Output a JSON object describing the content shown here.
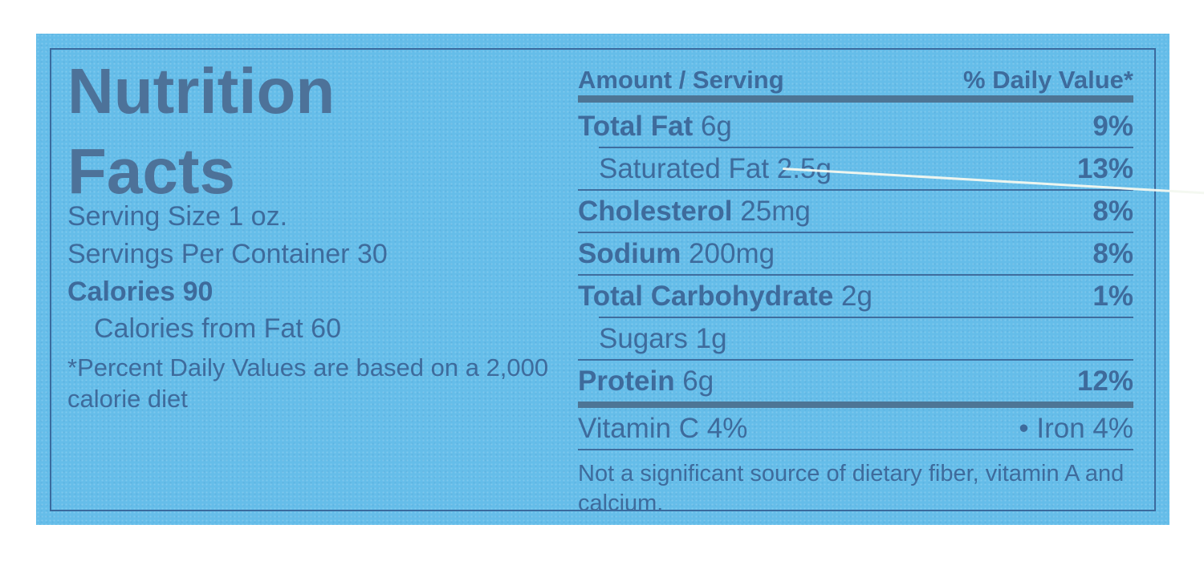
{
  "colors": {
    "page_background": "#ffffff",
    "label_background": "#65bde9",
    "text": "#3e6b9c",
    "title_text": "#4d7299",
    "thin_rule": "#3e6d9e",
    "thick_rule": "#4d7595",
    "border": "#3a6a9e",
    "scratch_line": "#f3f8f0"
  },
  "label": {
    "title_line1": "Nutrition",
    "title_line2": "Facts",
    "serving_size": "Serving Size 1 oz.",
    "servings_per_container": "Servings Per Container 30",
    "calories": "Calories 90",
    "calories_from_fat": "Calories from Fat 60",
    "footnote_line1": "*Percent Daily Values are based on a 2,000",
    "footnote_line2": "calorie diet",
    "table": {
      "header_left": "Amount / Serving",
      "header_right": "% Daily Value*",
      "rows": [
        {
          "label": "Total Fat",
          "amount": "6g",
          "dv": "9%",
          "bold": true,
          "indent": false,
          "divider": "thin-indent"
        },
        {
          "label": "Saturated Fat",
          "amount": "2.5g",
          "dv": "13%",
          "bold": false,
          "indent": true,
          "divider": "thin"
        },
        {
          "label": "Cholesterol",
          "amount": "25mg",
          "dv": "8%",
          "bold": true,
          "indent": false,
          "divider": "thin"
        },
        {
          "label": "Sodium",
          "amount": "200mg",
          "dv": "8%",
          "bold": true,
          "indent": false,
          "divider": "thin"
        },
        {
          "label": "Total Carbohydrate",
          "amount": "2g",
          "dv": "1%",
          "bold": true,
          "indent": false,
          "divider": "thin-indent"
        },
        {
          "label": "Sugars",
          "amount": "1g",
          "dv": "",
          "bold": false,
          "indent": true,
          "divider": "thin"
        },
        {
          "label": "Protein",
          "amount": "6g",
          "dv": "12%",
          "bold": true,
          "indent": false,
          "divider": "thick"
        }
      ],
      "vitamin_left": "Vitamin C 4%",
      "vitamin_right": "• Iron 4%",
      "disclaimer": "Not a significant source of dietary fiber, vitamin A and calcium."
    }
  }
}
